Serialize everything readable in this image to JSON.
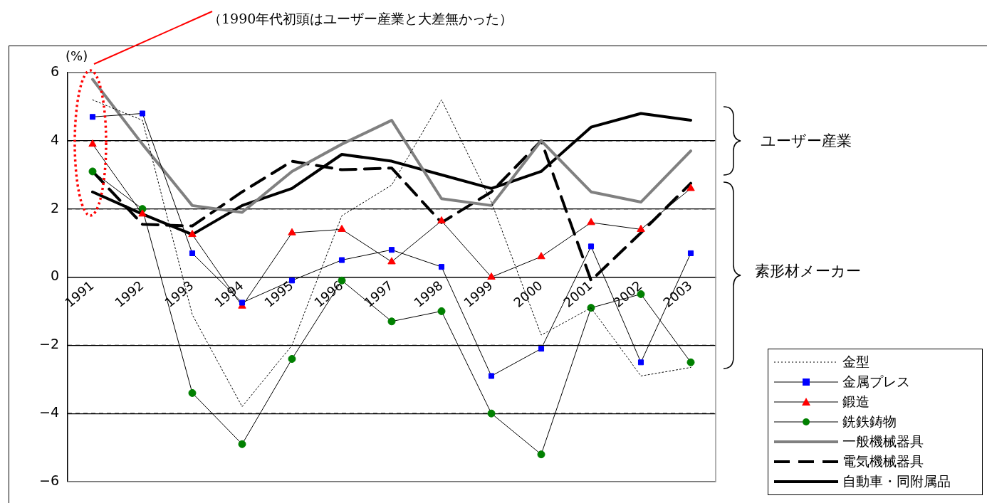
{
  "chart_data": {
    "type": "line",
    "ylabel": "(%)",
    "categories": [
      "1991",
      "1992",
      "1993",
      "1994",
      "1995",
      "1996",
      "1997",
      "1998",
      "1999",
      "2000",
      "2001",
      "2002",
      "2003"
    ],
    "ylim": [
      -6,
      6
    ],
    "yticks": [
      6,
      4,
      2,
      0,
      {
        "value": -2,
        "label": "−2"
      },
      {
        "value": -4,
        "label": "−4"
      },
      {
        "value": -6,
        "label": "−6"
      }
    ],
    "grid": "y",
    "legend": "bottom right",
    "series": [
      {
        "name": "金型",
        "color": "#000000",
        "marker": "none",
        "line_style": "dotted",
        "values": [
          5.2,
          4.6,
          -1.1,
          -3.8,
          -2.0,
          1.8,
          2.7,
          5.2,
          2.2,
          -1.7,
          -0.9,
          -2.9,
          -2.65
        ]
      },
      {
        "name": "金属プレス",
        "color": "#0000ff",
        "marker": "square",
        "line_style": "solid",
        "values": [
          4.7,
          4.8,
          0.7,
          -0.75,
          -0.1,
          0.5,
          0.8,
          0.3,
          -2.9,
          -2.1,
          0.9,
          -2.5,
          0.7
        ]
      },
      {
        "name": "鍛造",
        "color": "#ff0000",
        "marker": "triangle",
        "line_style": "solid",
        "values": [
          3.9,
          1.85,
          1.25,
          -0.85,
          1.3,
          1.4,
          0.45,
          1.65,
          0.0,
          0.6,
          1.6,
          1.4,
          2.6
        ]
      },
      {
        "name": "銑鉄鋳物",
        "color": "#008000",
        "marker": "circle",
        "line_style": "solid",
        "values": [
          3.1,
          2.0,
          -3.4,
          -4.9,
          -2.4,
          -0.1,
          -1.3,
          -1.0,
          -4.0,
          -5.2,
          -0.9,
          -0.5,
          -2.5
        ]
      },
      {
        "name": "一般機械器具",
        "color": "#808080",
        "marker": "none",
        "line_style": "solid",
        "values": [
          5.8,
          3.9,
          2.1,
          1.9,
          3.1,
          3.9,
          4.6,
          2.3,
          2.1,
          4.0,
          2.5,
          2.2,
          3.7
        ]
      },
      {
        "name": "電気機械器具",
        "color": "#000000",
        "marker": "none",
        "line_style": "dashed",
        "values": [
          3.1,
          1.55,
          1.5,
          2.5,
          3.4,
          3.15,
          3.2,
          1.6,
          2.5,
          4.0,
          -0.1,
          1.3,
          2.75
        ]
      },
      {
        "name": "自動車・同附属品",
        "color": "#000000",
        "marker": "none",
        "line_style": "solid",
        "values": [
          2.5,
          1.85,
          1.25,
          2.1,
          2.6,
          3.6,
          3.4,
          3.0,
          2.6,
          3.1,
          4.4,
          4.8,
          4.6
        ]
      }
    ],
    "annotations": [
      "（1990年代初頭はユーザー産業と大差無かった）",
      "ユーザー産業",
      "素形材メーカー"
    ]
  }
}
